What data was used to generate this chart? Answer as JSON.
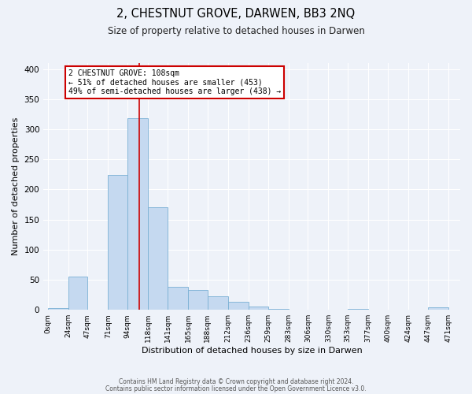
{
  "title": "2, CHESTNUT GROVE, DARWEN, BB3 2NQ",
  "subtitle": "Size of property relative to detached houses in Darwen",
  "xlabel": "Distribution of detached houses by size in Darwen",
  "ylabel": "Number of detached properties",
  "tick_positions": [
    0,
    24,
    47,
    71,
    94,
    118,
    141,
    165,
    188,
    212,
    236,
    259,
    283,
    306,
    330,
    353,
    377,
    400,
    424,
    447,
    471
  ],
  "bar_heights": [
    3,
    55,
    0,
    224,
    319,
    170,
    38,
    33,
    22,
    13,
    6,
    1,
    0,
    0,
    0,
    2,
    0,
    0,
    0,
    4
  ],
  "bar_color": "#c5d9f0",
  "bar_edge_color": "#7ab0d4",
  "vline_x": 108,
  "vline_color": "#cc0000",
  "annotation_title": "2 CHESTNUT GROVE: 108sqm",
  "annotation_line1": "← 51% of detached houses are smaller (453)",
  "annotation_line2": "49% of semi-detached houses are larger (438) →",
  "annotation_box_color": "#ffffff",
  "annotation_box_edge": "#cc0000",
  "ylim": [
    0,
    410
  ],
  "background_color": "#eef2f9",
  "grid_color": "#ffffff",
  "footer1": "Contains HM Land Registry data © Crown copyright and database right 2024.",
  "footer2": "Contains public sector information licensed under the Open Government Licence v3.0."
}
